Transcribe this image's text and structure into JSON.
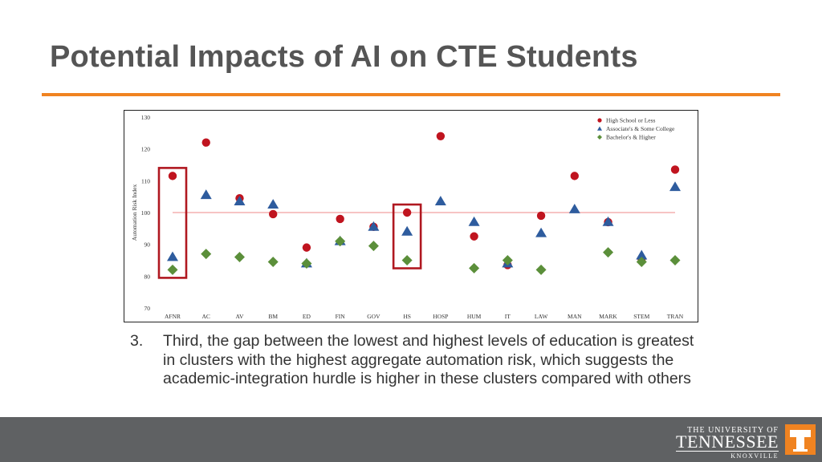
{
  "slide": {
    "title": "Potential Impacts of AI on CTE Students",
    "note_number": "3.",
    "note_text": "Third, the gap between the lowest and highest levels of education is greatest in clusters with the highest aggregate automation risk, which suggests the academic-integration hurdle is higher in these clusters compared with others"
  },
  "logo": {
    "line1": "THE UNIVERSITY OF",
    "line2": "TENNESSEE",
    "line3": "KNOXVILLE",
    "badge_icon": "power-t-icon"
  },
  "colors": {
    "accent_rule": "#f08321",
    "footer": "#5f6163",
    "high_school": "#c0141f",
    "associates": "#2e5c9e",
    "bachelors": "#5b8f3a",
    "reference_line": "#f2a0a0",
    "highlight_box": "#b01820"
  },
  "chart_data": {
    "type": "scatter",
    "title": "",
    "xlabel": "",
    "ylabel": "Automation Risk Index",
    "ylim": [
      70,
      130
    ],
    "yticks": [
      70,
      80,
      90,
      100,
      110,
      120,
      130
    ],
    "reference_line": 100,
    "legend_position": "top-right",
    "grid": false,
    "categories": [
      "AFNR",
      "AC",
      "AV",
      "BM",
      "ED",
      "FIN",
      "GOV",
      "HS",
      "HOSP",
      "HUM",
      "IT",
      "LAW",
      "MAN",
      "MARK",
      "STEM",
      "TRAN"
    ],
    "series": [
      {
        "name": "High School or Less",
        "marker": "circle",
        "values": [
          111.5,
          122,
          104.5,
          99.5,
          89,
          98,
          95.5,
          100,
          124,
          92.5,
          83.5,
          99,
          111.5,
          97,
          85.5,
          113.5
        ]
      },
      {
        "name": "Associate's & Some College",
        "marker": "triangle",
        "values": [
          86,
          105.5,
          103.5,
          102.5,
          84,
          91,
          95.5,
          94,
          103.5,
          97,
          84,
          93.5,
          101,
          97,
          86.5,
          108
        ]
      },
      {
        "name": "Bachelor's & Higher",
        "marker": "diamond",
        "values": [
          82,
          87,
          86,
          84.5,
          84,
          91,
          89.5,
          85,
          null,
          82.5,
          85,
          82,
          null,
          87.5,
          84.5,
          85
        ]
      }
    ],
    "highlighted_categories": [
      "AFNR",
      "HS"
    ]
  }
}
